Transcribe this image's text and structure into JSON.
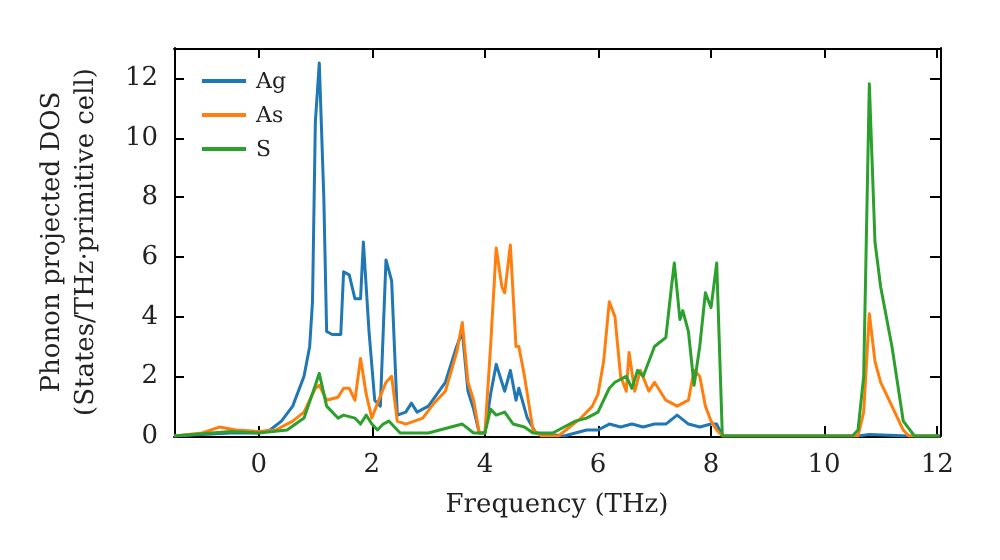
{
  "chart_data": {
    "type": "line",
    "xlabel": "Frequency (THz)",
    "ylabel": "Phonon projected DOS\n(States/THz·primitive cell)",
    "xlim": [
      -1.5,
      12.05
    ],
    "ylim": [
      0,
      13
    ],
    "xticks": [
      0,
      2,
      4,
      6,
      8,
      10,
      12
    ],
    "yticks": [
      0,
      2,
      4,
      6,
      8,
      10,
      12
    ],
    "grid": false,
    "legend": "top left",
    "marker": "none",
    "line_style": "solid",
    "series": [
      {
        "name": "Ag",
        "color": "#1f77b4",
        "x": [
          -1.5,
          -1,
          -0.5,
          0,
          0.2,
          0.4,
          0.6,
          0.8,
          0.9,
          0.95,
          1.0,
          1.07,
          1.15,
          1.2,
          1.3,
          1.45,
          1.5,
          1.6,
          1.7,
          1.8,
          1.85,
          1.95,
          2.05,
          2.15,
          2.25,
          2.35,
          2.45,
          2.6,
          2.7,
          2.8,
          3.0,
          3.3,
          3.5,
          3.6,
          3.7,
          3.8,
          3.9,
          4.0,
          4.1,
          4.2,
          4.35,
          4.45,
          4.55,
          4.6,
          4.75,
          4.9,
          5.4,
          5.6,
          5.8,
          6.0,
          6.2,
          6.4,
          6.6,
          6.8,
          7.0,
          7.2,
          7.4,
          7.6,
          7.8,
          8.0,
          8.1,
          8.2,
          10.6,
          10.8,
          11.5,
          12.05
        ],
        "values": [
          0,
          0.05,
          0.1,
          0.1,
          0.2,
          0.5,
          1.0,
          2.0,
          3,
          4.5,
          10.5,
          12.5,
          8,
          3.5,
          3.4,
          3.4,
          5.5,
          5.4,
          4.6,
          4.6,
          6.5,
          3.5,
          1.2,
          1.0,
          5.9,
          5.2,
          0.7,
          0.8,
          1.1,
          0.8,
          1.0,
          1.8,
          3.0,
          3.5,
          1.5,
          0.9,
          0.1,
          0.1,
          1.4,
          2.4,
          1.5,
          2.2,
          1.2,
          1.6,
          0.6,
          0.1,
          0,
          0.1,
          0.2,
          0.2,
          0.4,
          0.3,
          0.4,
          0.3,
          0.4,
          0.4,
          0.7,
          0.4,
          0.3,
          0.4,
          0.4,
          0,
          0,
          0.05,
          0,
          0
        ]
      },
      {
        "name": "As",
        "color": "#ff7f0e",
        "x": [
          -1.5,
          -1,
          -0.7,
          -0.4,
          0,
          0.3,
          0.6,
          0.8,
          1.0,
          1.07,
          1.2,
          1.4,
          1.5,
          1.6,
          1.7,
          1.8,
          1.9,
          2.0,
          2.1,
          2.25,
          2.35,
          2.45,
          2.6,
          2.9,
          3.1,
          3.3,
          3.5,
          3.6,
          3.7,
          3.8,
          3.9,
          4.0,
          4.1,
          4.2,
          4.3,
          4.35,
          4.45,
          4.55,
          4.6,
          4.7,
          4.85,
          5.0,
          5.3,
          5.5,
          5.7,
          5.9,
          6.0,
          6.1,
          6.2,
          6.3,
          6.4,
          6.5,
          6.55,
          6.65,
          6.75,
          6.9,
          7.0,
          7.2,
          7.4,
          7.6,
          7.7,
          7.8,
          7.9,
          8.0,
          8.1,
          8.2,
          10.6,
          10.7,
          10.8,
          10.9,
          11.0,
          11.2,
          11.4,
          11.5,
          12.05
        ],
        "values": [
          0,
          0.1,
          0.3,
          0.2,
          0.15,
          0.2,
          0.5,
          0.8,
          1.6,
          1.7,
          1.2,
          1.3,
          1.6,
          1.6,
          1.2,
          2.6,
          1.4,
          0.6,
          1.1,
          1.8,
          2.0,
          0.5,
          0.4,
          0.6,
          1.1,
          1.5,
          2.8,
          3.8,
          1.8,
          1.2,
          0.1,
          0.1,
          3.0,
          6.3,
          5.0,
          4.8,
          6.4,
          3.0,
          3.0,
          2.0,
          0.2,
          0,
          0,
          0.3,
          0.6,
          1.0,
          1.4,
          2.5,
          4.5,
          4.0,
          2.0,
          1.5,
          2.8,
          1.5,
          2.2,
          1.5,
          1.8,
          1.2,
          1.0,
          1.2,
          2.2,
          2.0,
          1.0,
          0.5,
          0.2,
          0,
          0,
          0.8,
          4.1,
          2.5,
          1.8,
          1.0,
          0.2,
          0,
          0
        ]
      },
      {
        "name": "S",
        "color": "#2ca02c",
        "x": [
          -1.5,
          -0.5,
          0,
          0.5,
          0.8,
          1.0,
          1.07,
          1.2,
          1.4,
          1.5,
          1.7,
          1.8,
          1.9,
          2.0,
          2.1,
          2.2,
          2.3,
          2.5,
          3.0,
          3.4,
          3.6,
          3.8,
          4.0,
          4.1,
          4.2,
          4.35,
          4.5,
          4.7,
          4.85,
          5.2,
          5.4,
          5.6,
          5.8,
          6.0,
          6.2,
          6.3,
          6.5,
          6.6,
          6.7,
          6.8,
          7.0,
          7.2,
          7.3,
          7.35,
          7.45,
          7.5,
          7.6,
          7.7,
          7.8,
          7.9,
          8.0,
          8.1,
          8.2,
          10.5,
          10.6,
          10.7,
          10.8,
          10.9,
          11.0,
          11.2,
          11.4,
          11.6,
          12.05
        ],
        "values": [
          0,
          0.15,
          0.1,
          0.2,
          0.6,
          1.7,
          2.1,
          1.0,
          0.6,
          0.7,
          0.6,
          0.4,
          0.7,
          0.4,
          0.2,
          0.4,
          0.5,
          0.1,
          0.1,
          0.3,
          0.4,
          0.1,
          0.1,
          0.9,
          0.7,
          0.8,
          0.4,
          0.3,
          0.1,
          0.1,
          0.3,
          0.5,
          0.6,
          0.8,
          1.6,
          1.8,
          2.0,
          1.6,
          2.2,
          2.0,
          3.0,
          3.3,
          5.0,
          5.8,
          3.9,
          4.2,
          3.5,
          1.7,
          3.0,
          4.8,
          4.3,
          5.8,
          0,
          0,
          0.2,
          2.0,
          11.8,
          6.5,
          5.0,
          3.0,
          0.5,
          0,
          0
        ]
      }
    ]
  }
}
